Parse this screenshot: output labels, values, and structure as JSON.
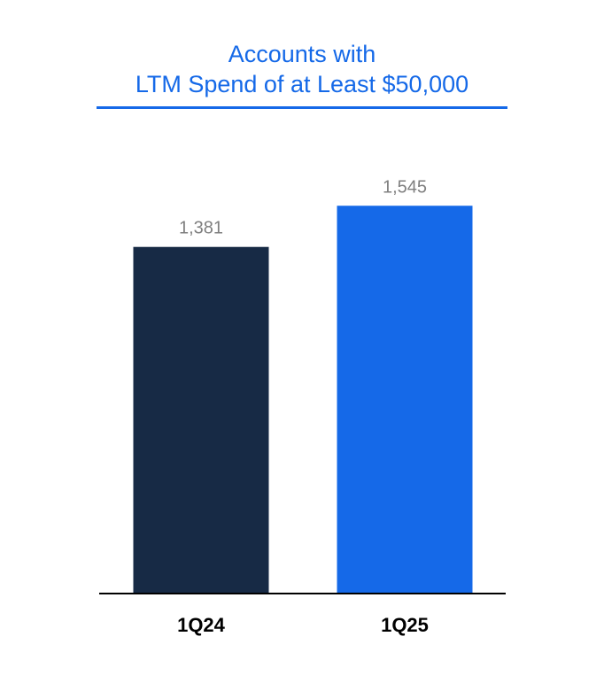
{
  "chart_data": {
    "type": "bar",
    "title_lines": [
      "Accounts with",
      "LTM Spend of at Least $50,000"
    ],
    "categories": [
      "1Q24",
      "1Q25"
    ],
    "values": [
      1381,
      1545
    ],
    "value_labels": [
      "1,381",
      "1,545"
    ],
    "bar_colors": [
      "#172a45",
      "#1569e8"
    ],
    "title_color": "#1569e8",
    "value_label_color": "#7f7f7f",
    "xlabel": "",
    "ylabel": "",
    "ylim": [
      0,
      1800
    ],
    "grid": false,
    "legend": "none"
  }
}
